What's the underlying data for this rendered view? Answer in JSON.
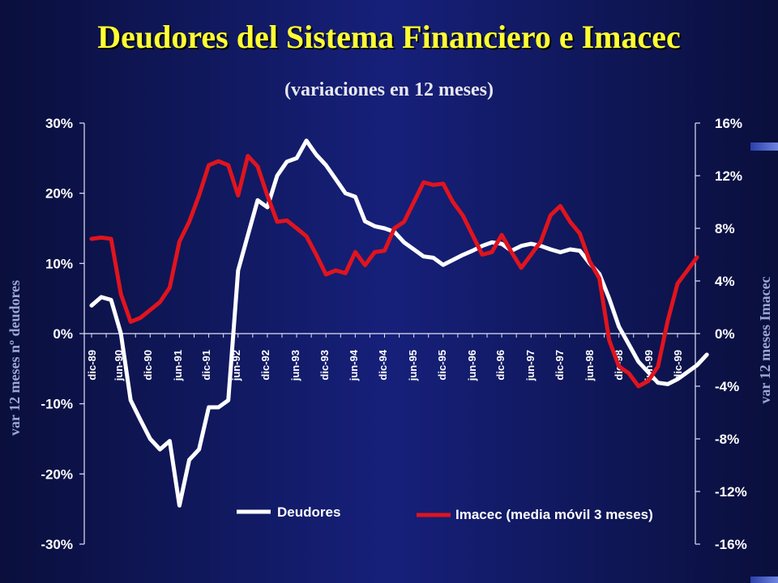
{
  "title": "Deudores del Sistema Financiero e Imacec",
  "subtitle": "(variaciones en 12 meses)",
  "colors": {
    "deudores": "#ffffff",
    "imacec": "#e0141e",
    "title": "#ffff33",
    "axis_text": "#ffffff",
    "ylabel": "#9aa7d6"
  },
  "chart_data": {
    "type": "line",
    "title": "Deudores del Sistema Financiero e Imacec",
    "subtitle": "(variaciones en 12 meses)",
    "x_labels": [
      "dic-89",
      "jun-90",
      "dic-90",
      "jun-91",
      "dic-91",
      "jun-92",
      "dic-92",
      "jun-93",
      "dic-93",
      "jun-94",
      "dic-94",
      "jun-95",
      "dic-95",
      "jun-96",
      "dic-96",
      "jun-97",
      "dic-97",
      "jun-98",
      "dic-98",
      "jun-99",
      "dic-99"
    ],
    "y_left": {
      "label": "var 12 meses nº deudores",
      "range": [
        -30,
        30
      ],
      "tick_labels": [
        "30%",
        "20%",
        "10%",
        "0%",
        "-10%",
        "-20%",
        "-30%"
      ]
    },
    "y_right": {
      "label": "var 12 meses Imacec",
      "range": [
        -16,
        16
      ],
      "tick_labels": [
        "16%",
        "12%",
        "8%",
        "4%",
        "0%",
        "-4%",
        "-8%",
        "-12%",
        "-16%"
      ]
    },
    "grid": false,
    "legend_position": "bottom",
    "series": [
      {
        "name": "Deudores",
        "axis": "left",
        "color": "#ffffff",
        "x_start": "dic-89",
        "step_months": 2,
        "values": [
          4.0,
          5.2,
          4.8,
          0.0,
          -9.5,
          -12.3,
          -15.0,
          -16.5,
          -15.3,
          -24.5,
          -18.0,
          -16.5,
          -10.5,
          -10.5,
          -9.5,
          9.0,
          14.0,
          19.0,
          18.0,
          22.5,
          24.5,
          25.0,
          27.5,
          25.5,
          24.0,
          22.0,
          20.0,
          19.5,
          16.0,
          15.3,
          15.0,
          14.5,
          13.0,
          12.0,
          11.0,
          10.8,
          9.8,
          10.5,
          11.2,
          11.8,
          12.5,
          13.0,
          12.8,
          11.8,
          12.5,
          12.8,
          12.5,
          12.0,
          11.6,
          12.0,
          11.8,
          10.0,
          8.5,
          5.0,
          1.0,
          -1.5,
          -4.0,
          -5.5,
          -7.0,
          -7.2,
          -6.5,
          -5.5,
          -4.5,
          -3.0
        ]
      },
      {
        "name": "Imacec (media móvil 3 meses)",
        "axis": "right",
        "color": "#e0141e",
        "x_start": "dic-89",
        "step_months": 2,
        "values": [
          7.2,
          7.3,
          7.2,
          3.0,
          0.9,
          1.2,
          1.8,
          2.4,
          3.5,
          7.0,
          8.5,
          10.5,
          12.8,
          13.1,
          12.8,
          10.5,
          13.5,
          12.7,
          10.5,
          8.5,
          8.6,
          8.0,
          7.4,
          6.0,
          4.5,
          4.8,
          4.6,
          6.2,
          5.2,
          6.2,
          6.3,
          8.0,
          8.5,
          10.0,
          11.5,
          11.3,
          11.4,
          10.0,
          9.0,
          7.5,
          6.0,
          6.2,
          7.5,
          6.2,
          5.0,
          6.0,
          7.0,
          9.0,
          9.7,
          8.5,
          7.6,
          5.5,
          4.2,
          -0.5,
          -2.5,
          -3.0,
          -4.0,
          -3.6,
          -2.5,
          1.0,
          3.8,
          4.8,
          5.8
        ]
      }
    ]
  },
  "legend": {
    "deudores": "Deudores",
    "imacec": "Imacec (media móvil 3 meses)"
  }
}
